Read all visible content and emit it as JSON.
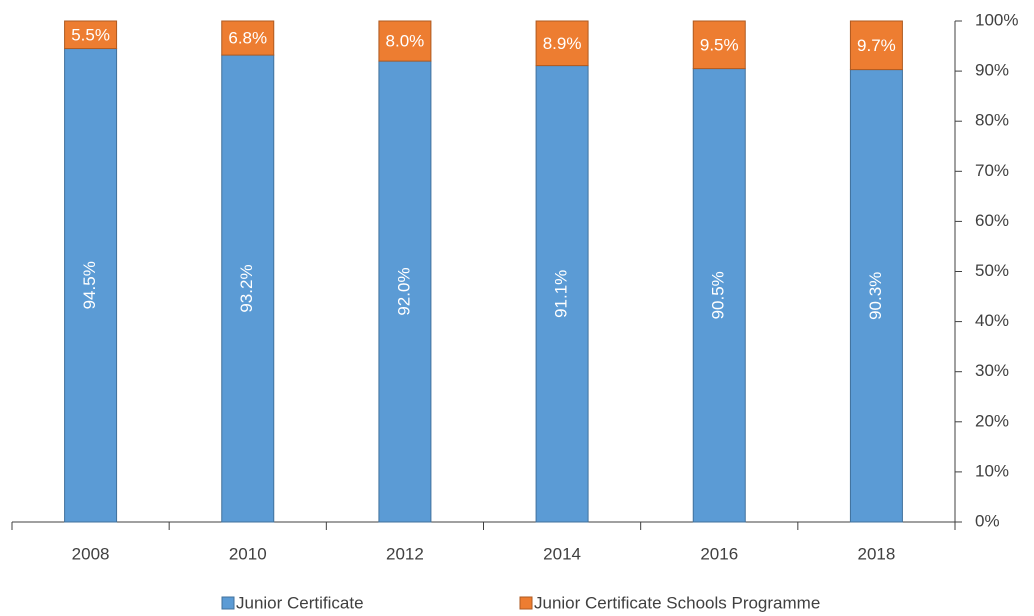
{
  "chart_data": {
    "type": "stacked_bar",
    "categories": [
      "2008",
      "2010",
      "2012",
      "2014",
      "2016",
      "2018"
    ],
    "series": [
      {
        "name": "Junior Certificate",
        "color": "#5b9bd5",
        "values": [
          94.5,
          93.2,
          92.0,
          91.1,
          90.5,
          90.3
        ],
        "value_labels": [
          "94.5%",
          "93.2%",
          "92.0%",
          "91.1%",
          "90.5%",
          "90.3%"
        ]
      },
      {
        "name": "Junior Certificate Schools Programme",
        "color": "#ed7d31",
        "values": [
          5.5,
          6.8,
          8.0,
          8.9,
          9.5,
          9.7
        ],
        "value_labels": [
          "5.5%",
          "6.8%",
          "8.0%",
          "8.9%",
          "9.5%",
          "9.7%"
        ]
      }
    ],
    "ylim": [
      0,
      100
    ],
    "yticks": [
      {
        "value": 0,
        "label": "0%"
      },
      {
        "value": 10,
        "label": "10%"
      },
      {
        "value": 20,
        "label": "20%"
      },
      {
        "value": 30,
        "label": "30%"
      },
      {
        "value": 40,
        "label": "40%"
      },
      {
        "value": 50,
        "label": "50%"
      },
      {
        "value": 60,
        "label": "60%"
      },
      {
        "value": 70,
        "label": "70%"
      },
      {
        "value": 80,
        "label": "80%"
      },
      {
        "value": 90,
        "label": "90%"
      },
      {
        "value": 100,
        "label": "100%"
      }
    ],
    "y_axis_side": "right",
    "legend": "bottom"
  }
}
